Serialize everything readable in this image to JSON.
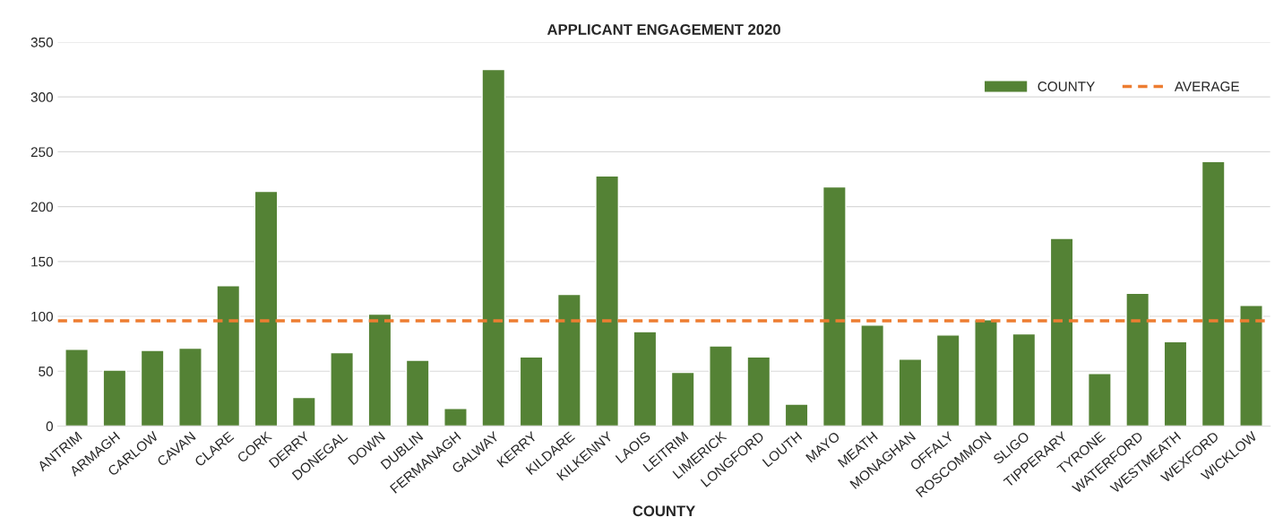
{
  "chart_data": {
    "type": "bar",
    "title": "APPLICANT ENGAGEMENT 2020",
    "xlabel": "COUNTY",
    "categories": [
      "ANTRIM",
      "ARMAGH",
      "CARLOW",
      "CAVAN",
      "CLARE",
      "CORK",
      "DERRY",
      "DONEGAL",
      "DOWN",
      "DUBLIN",
      "FERMANAGH",
      "GALWAY",
      "KERRY",
      "KILDARE",
      "KILKENNY",
      "LAOIS",
      "LEITRIM",
      "LIMERICK",
      "LONGFORD",
      "LOUTH",
      "MAYO",
      "MEATH",
      "MONAGHAN",
      "OFFALY",
      "ROSCOMMON",
      "SLIGO",
      "TIPPERARY",
      "TYRONE",
      "WATERFORD",
      "WESTMEATH",
      "WEXFORD",
      "WICKLOW"
    ],
    "series": [
      {
        "name": "COUNTY",
        "color": "#548235",
        "values": [
          70,
          51,
          69,
          71,
          128,
          214,
          26,
          67,
          102,
          60,
          16,
          325,
          63,
          120,
          228,
          86,
          49,
          73,
          63,
          20,
          218,
          92,
          61,
          83,
          97,
          84,
          171,
          48,
          121,
          77,
          241,
          110
        ]
      }
    ],
    "ref_lines": [
      {
        "axis": "y",
        "value": 96,
        "label": "AVERAGE",
        "color": "#ed7d31",
        "line_style": "dashed"
      }
    ],
    "ylim": [
      0,
      350
    ],
    "yticks": [
      0,
      50,
      100,
      150,
      200,
      250,
      300,
      350
    ],
    "grid": "y",
    "legend": "top right"
  }
}
